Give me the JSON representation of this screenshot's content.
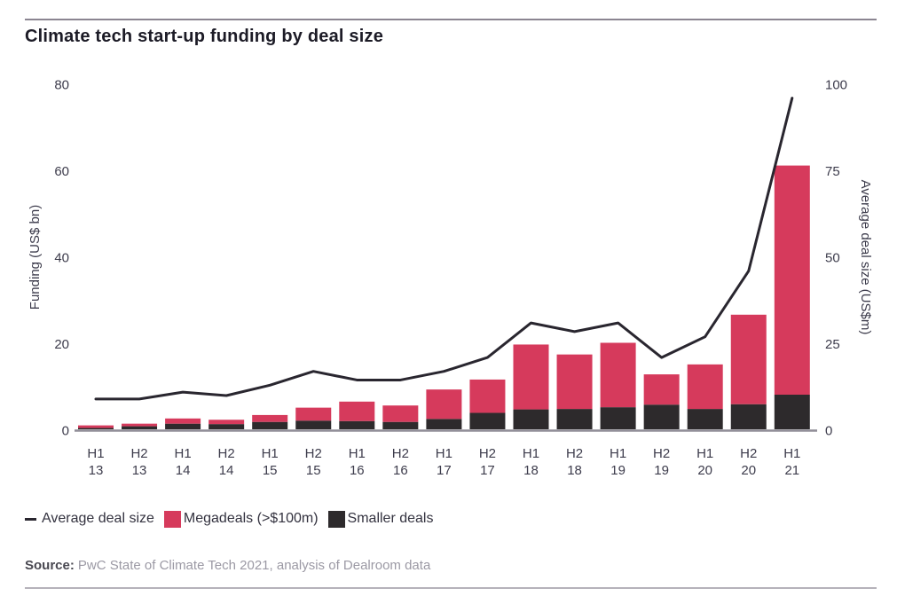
{
  "title": "Climate tech start-up funding by deal size",
  "legend": {
    "line_label": "Average deal size",
    "megadeals_label": "Megadeals (>$100m)",
    "smaller_label": "Smaller deals"
  },
  "source": {
    "prefix": "Source:",
    "text": "PwC State of Climate Tech 2021, analysis of Dealroom data"
  },
  "colors": {
    "megadeals": "#d63a5c",
    "smaller_deals": "#2d2a2c",
    "line": "#29262f",
    "axis": "#908d97",
    "tick_text": "#3d3c4c"
  },
  "chart_data": {
    "type": "bar",
    "subtype": "stacked bars with overlaid line on secondary axis",
    "title": "Climate tech start-up funding by deal size",
    "categories": [
      "H1 13",
      "H2 13",
      "H1 14",
      "H2 14",
      "H1 15",
      "H2 15",
      "H1 16",
      "H2 16",
      "H1 17",
      "H2 17",
      "H1 18",
      "H2 18",
      "H1 19",
      "H2 19",
      "H1 20",
      "H2 20",
      "H1 21"
    ],
    "series": [
      {
        "name": "Smaller deals",
        "type": "bar",
        "stack": "funding",
        "axis": "left",
        "values": [
          0.3,
          0.7,
          1.3,
          1.2,
          1.7,
          2.0,
          1.9,
          1.7,
          2.4,
          3.8,
          4.6,
          4.7,
          5.1,
          5.7,
          4.7,
          5.8,
          8.0
        ]
      },
      {
        "name": "Megadeals (>$100m)",
        "type": "bar",
        "stack": "funding",
        "axis": "left",
        "values": [
          0.6,
          0.6,
          1.2,
          1.0,
          1.6,
          3.0,
          4.5,
          3.8,
          6.8,
          7.7,
          15.0,
          12.6,
          14.9,
          7.0,
          10.3,
          20.7,
          53.0
        ]
      },
      {
        "name": "Average deal size",
        "type": "line",
        "axis": "right",
        "values": [
          9,
          9,
          11,
          10,
          13,
          17,
          14.5,
          14.5,
          17,
          21,
          31,
          28.5,
          31,
          21,
          27,
          46,
          96
        ]
      }
    ],
    "left_axis": {
      "label": "Funding (US$ bn)",
      "ticks": [
        0,
        20,
        40,
        60,
        80
      ],
      "range": [
        0,
        80
      ]
    },
    "right_axis": {
      "label": "Average deal size (US$m)",
      "ticks": [
        0,
        25,
        50,
        75,
        100
      ],
      "range": [
        0,
        100
      ]
    },
    "grid": false,
    "legend_position": "bottom"
  }
}
